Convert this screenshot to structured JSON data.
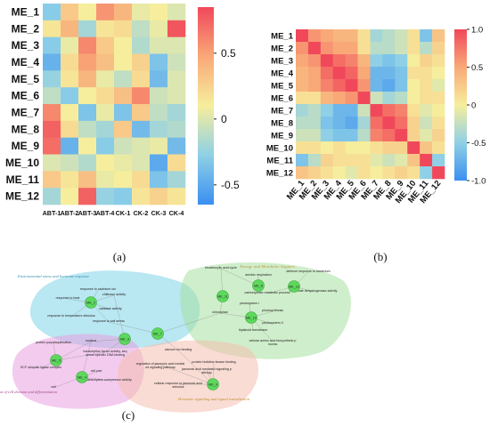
{
  "chart_data": [
    {
      "type": "heatmap",
      "rows": [
        "ME_1",
        "ME_2",
        "ME_3",
        "ME_4",
        "ME_5",
        "ME_6",
        "ME_7",
        "ME_8",
        "ME_9",
        "ME_10",
        "ME_11",
        "ME_12"
      ],
      "columns": [
        "ABT-1",
        "ABT-2",
        "ABT-3",
        "ABT-4",
        "CK-1",
        "CK-2",
        "CK-3",
        "CK-4"
      ],
      "values": [
        [
          -0.3,
          0.3,
          0.1,
          0.55,
          0.4,
          0.05,
          0.1,
          0.0
        ],
        [
          0.15,
          0.4,
          -0.2,
          0.15,
          0.2,
          -0.1,
          0.05,
          0.8
        ],
        [
          -0.3,
          0.05,
          0.6,
          0.3,
          0.1,
          -0.15,
          0.0,
          0.0
        ],
        [
          -0.45,
          0.2,
          0.5,
          0.35,
          0.1,
          0.25,
          -0.35,
          -0.05
        ],
        [
          -0.25,
          0.15,
          0.4,
          0.05,
          -0.1,
          0.2,
          -0.4,
          0.0
        ],
        [
          -0.1,
          -0.3,
          0.1,
          0.2,
          0.35,
          0.6,
          -0.05,
          0.0
        ],
        [
          0.6,
          0.1,
          -0.35,
          0.05,
          -0.35,
          0.3,
          -0.1,
          -0.2
        ],
        [
          0.75,
          0.2,
          -0.1,
          -0.2,
          0.3,
          -0.4,
          -0.2,
          -0.15
        ],
        [
          0.7,
          -0.45,
          0.1,
          -0.3,
          -0.05,
          0.0,
          0.05,
          -0.4
        ],
        [
          0.0,
          -0.05,
          -0.15,
          0.1,
          0.05,
          0.0,
          -0.5,
          0.2
        ],
        [
          0.3,
          0.15,
          0.35,
          0.05,
          0.1,
          0.2,
          -0.35,
          -0.2
        ],
        [
          -0.2,
          0.1,
          0.75,
          -0.25,
          -0.3,
          0.15,
          0.25,
          0.15
        ]
      ],
      "colorbar_ticks": [
        0.5,
        0,
        -0.5
      ],
      "colorbar_range": [
        -0.65,
        0.85
      ],
      "panel_label": "(a)"
    },
    {
      "type": "heatmap",
      "rows": [
        "ME_1",
        "ME_2",
        "ME_3",
        "ME_4",
        "ME_5",
        "ME_6",
        "ME_7",
        "ME_8",
        "ME_9",
        "ME_10",
        "ME_11",
        "ME_12"
      ],
      "columns": [
        "ME_1",
        "ME_2",
        "ME_3",
        "ME_4",
        "ME_5",
        "ME_6",
        "ME_7",
        "ME_8",
        "ME_9",
        "ME_10",
        "ME_11",
        "ME_12"
      ],
      "values": [
        [
          1.0,
          0.6,
          0.5,
          0.4,
          0.4,
          0.1,
          -0.4,
          -0.3,
          -0.2,
          0.1,
          -0.6,
          0.3
        ],
        [
          0.6,
          1.0,
          0.6,
          0.5,
          0.5,
          0.1,
          -0.3,
          -0.3,
          -0.2,
          0.1,
          -0.3,
          0.2
        ],
        [
          0.5,
          0.6,
          1.0,
          0.8,
          0.7,
          0.4,
          -0.5,
          -0.6,
          -0.5,
          0.0,
          0.2,
          0.1
        ],
        [
          0.4,
          0.5,
          0.8,
          1.0,
          0.85,
          0.5,
          -0.7,
          -0.7,
          -0.6,
          0.1,
          0.1,
          0.0
        ],
        [
          0.4,
          0.5,
          0.7,
          0.85,
          1.0,
          0.6,
          -0.7,
          -0.8,
          -0.6,
          0.0,
          0.1,
          -0.1
        ],
        [
          0.1,
          0.1,
          0.4,
          0.5,
          0.6,
          1.0,
          -0.2,
          -0.4,
          -0.3,
          0.0,
          0.1,
          0.1
        ],
        [
          -0.4,
          -0.3,
          -0.5,
          -0.7,
          -0.7,
          -0.2,
          1.0,
          0.8,
          0.7,
          0.1,
          -0.1,
          0.0
        ],
        [
          -0.3,
          -0.3,
          -0.6,
          -0.7,
          -0.8,
          -0.4,
          0.8,
          1.0,
          0.8,
          0.2,
          -0.2,
          0.1
        ],
        [
          -0.2,
          -0.2,
          -0.5,
          -0.6,
          -0.6,
          -0.3,
          0.7,
          0.8,
          1.0,
          0.2,
          -0.1,
          0.2
        ],
        [
          0.1,
          0.1,
          0.0,
          0.1,
          0.0,
          0.0,
          0.1,
          0.2,
          0.2,
          1.0,
          0.3,
          0.1
        ],
        [
          -0.6,
          -0.3,
          0.2,
          0.1,
          0.1,
          0.1,
          -0.1,
          -0.2,
          -0.1,
          0.3,
          1.0,
          -0.5
        ],
        [
          0.3,
          0.2,
          0.1,
          0.0,
          -0.1,
          0.1,
          0.0,
          0.1,
          0.2,
          0.1,
          -0.5,
          1.0
        ]
      ],
      "colorbar_ticks": [
        1.0,
        0.5,
        0,
        -0.5,
        -1.0
      ],
      "colorbar_tick_labels": [
        "1.0",
        "0.5",
        "0",
        "-0.5",
        "-1.0"
      ],
      "colorbar_range": [
        -1.0,
        1.0
      ],
      "panel_label": "(b)"
    }
  ],
  "network": {
    "panel_label": "(c)",
    "groups": [
      {
        "id": "g1",
        "label": "Environmental stress and hormone response",
        "color": "#7fd4e8",
        "text_color": "#3a8fb0"
      },
      {
        "id": "g2",
        "label": "Energy and Metabolic Support",
        "color": "#a8e0a0",
        "text_color": "#c09030"
      },
      {
        "id": "g3",
        "label": "Regulation of cell division and differentiation",
        "color": "#e8a0e0",
        "text_color": "#a05090"
      },
      {
        "id": "g4",
        "label": "Hormone signaling and signal transduction",
        "color": "#f4c0b0",
        "text_color": "#c09030"
      }
    ],
    "modules": [
      {
        "id": "ME_2",
        "label": "ME_2"
      },
      {
        "id": "ME_3",
        "label": "ME_3"
      },
      {
        "id": "ME_4",
        "label": "ME_4"
      },
      {
        "id": "ME_5",
        "label": "ME_5"
      },
      {
        "id": "ME_6",
        "label": "ME_6"
      },
      {
        "id": "ME_7",
        "label": "ME_7"
      },
      {
        "id": "ME_9",
        "label": "ME_9"
      },
      {
        "id": "ME_10",
        "label": "ME_10"
      },
      {
        "id": "ME_11",
        "label": "ME_11"
      },
      {
        "id": "ME_12",
        "label": "ME_12"
      }
    ],
    "terms": [
      "response to cadmium ion",
      "response to heat",
      "chitinase activity",
      "catalase activity",
      "response to temperature stimulus",
      "response to salt stress",
      "tricarboxylic acid cycle",
      "defense response to bacterium",
      "aerobic respiration",
      "succinate dehydrogenase activity",
      "carbohydrate metabolic process",
      "chloroplast",
      "photosystem I",
      "photosynthesis",
      "photosystem II",
      "thylakoid membrane",
      "cellular amino acid biosynthetic process",
      "protein polyubiquitination",
      "nucleus",
      "transcription factor activity, sequence-specific DNA binding",
      "SCF ubiquitin ligase complex",
      "cell part",
      "transcription corepressor activity",
      "cell",
      "calcium ion binding",
      "regulation of jasmonic acid mediated signaling pathway",
      "protein histidine kinase binding",
      "jasmonic acid mediated signaling pathway",
      "cellular response to jasmonic acid stimulus"
    ]
  }
}
